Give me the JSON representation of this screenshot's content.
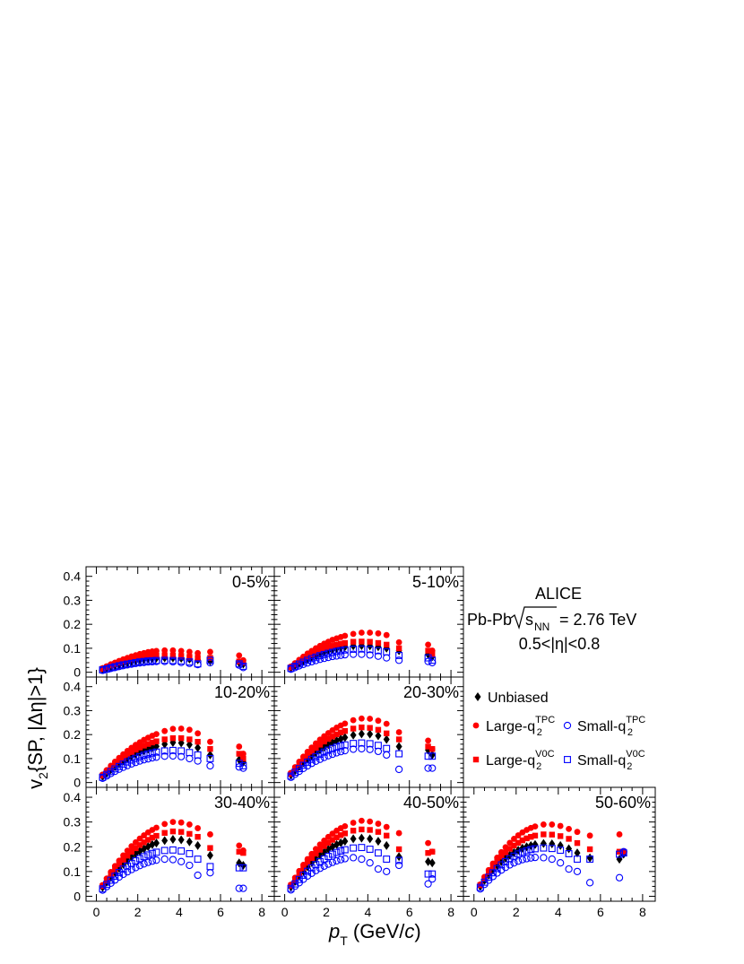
{
  "legend_box": {
    "experiment": "ALICE",
    "system_prefix": "Pb-Pb",
    "energy_symbol": "s",
    "energy_sub": "NN",
    "energy_value": "= 2.76 TeV",
    "eta_range": "0.5<|η|<0.8"
  },
  "legend": [
    {
      "label": "Unbiased",
      "sup": "",
      "marker": "diamond",
      "color": "#000000"
    },
    {
      "label": "Large-q",
      "sub": "2",
      "sup": "TPC",
      "marker": "circle",
      "color": "#ff0000"
    },
    {
      "label": "Small-q",
      "sub": "2",
      "sup": "TPC",
      "marker": "open-circle",
      "color": "#0000ff"
    },
    {
      "label": "Large-q",
      "sub": "2",
      "sup": "V0C",
      "marker": "square",
      "color": "#ff0000"
    },
    {
      "label": "Small-q",
      "sub": "2",
      "sup": "V0C",
      "marker": "open-square",
      "color": "#0000ff"
    }
  ],
  "chart_data": {
    "type": "scatter",
    "xlabel": {
      "italic": "p",
      "sub": "T",
      "rest": " (GeV/",
      "italic2": "c",
      "end": ")"
    },
    "ylabel": {
      "main": "v",
      "sub": "2",
      "rest": "{SP, |Δη|>1}"
    },
    "xlim": [
      -0.5,
      8.6
    ],
    "ylim": [
      -0.02,
      0.44
    ],
    "x_ticks": [
      "0",
      "2",
      "4",
      "6",
      "8"
    ],
    "y_ticks": [
      "0",
      "0.1",
      "0.2",
      "0.3",
      "0.4"
    ],
    "x": [
      0.3,
      0.5,
      0.7,
      0.9,
      1.1,
      1.3,
      1.5,
      1.7,
      1.9,
      2.1,
      2.3,
      2.5,
      2.7,
      2.9,
      3.3,
      3.7,
      4.1,
      4.5,
      4.9,
      5.5,
      6.9,
      7.1
    ],
    "panels": [
      {
        "label": "0-5%",
        "series": {
          "unbiased": [
            0.012,
            0.017,
            0.022,
            0.027,
            0.032,
            0.036,
            0.04,
            0.044,
            0.048,
            0.051,
            0.054,
            0.056,
            0.058,
            0.059,
            0.06,
            0.06,
            0.058,
            0.055,
            0.052,
            0.047,
            0.04,
            0.034
          ],
          "large_tpc": [
            0.017,
            0.025,
            0.033,
            0.04,
            0.047,
            0.054,
            0.06,
            0.066,
            0.071,
            0.076,
            0.08,
            0.084,
            0.087,
            0.089,
            0.091,
            0.091,
            0.089,
            0.085,
            0.08,
            0.085,
            0.07,
            0.05
          ],
          "small_tpc": [
            0.008,
            0.012,
            0.016,
            0.02,
            0.024,
            0.028,
            0.031,
            0.034,
            0.037,
            0.039,
            0.041,
            0.043,
            0.044,
            0.045,
            0.045,
            0.044,
            0.041,
            0.037,
            0.032,
            0.04,
            0.03,
            0.02
          ],
          "large_v0c": [
            0.014,
            0.021,
            0.028,
            0.034,
            0.04,
            0.045,
            0.05,
            0.054,
            0.058,
            0.062,
            0.065,
            0.067,
            0.069,
            0.07,
            0.071,
            0.07,
            0.068,
            0.064,
            0.06,
            0.06,
            0.045,
            0.04
          ],
          "small_v0c": [
            0.01,
            0.014,
            0.019,
            0.023,
            0.027,
            0.031,
            0.034,
            0.037,
            0.04,
            0.043,
            0.045,
            0.047,
            0.048,
            0.049,
            0.05,
            0.049,
            0.047,
            0.043,
            0.035,
            0.05,
            0.035,
            0.025
          ]
        }
      },
      {
        "label": "5-10%",
        "series": {
          "unbiased": [
            0.018,
            0.028,
            0.038,
            0.047,
            0.056,
            0.064,
            0.071,
            0.078,
            0.084,
            0.09,
            0.095,
            0.099,
            0.103,
            0.106,
            0.11,
            0.111,
            0.11,
            0.106,
            0.1,
            0.09,
            0.075,
            0.065
          ],
          "large_tpc": [
            0.024,
            0.038,
            0.052,
            0.065,
            0.078,
            0.089,
            0.1,
            0.11,
            0.119,
            0.127,
            0.135,
            0.141,
            0.147,
            0.152,
            0.16,
            0.165,
            0.165,
            0.162,
            0.155,
            0.125,
            0.115,
            0.09
          ],
          "small_tpc": [
            0.013,
            0.02,
            0.027,
            0.033,
            0.039,
            0.044,
            0.049,
            0.054,
            0.058,
            0.062,
            0.066,
            0.068,
            0.071,
            0.073,
            0.075,
            0.075,
            0.072,
            0.067,
            0.06,
            0.05,
            0.045,
            0.04
          ],
          "large_v0c": [
            0.02,
            0.032,
            0.044,
            0.055,
            0.065,
            0.074,
            0.083,
            0.091,
            0.098,
            0.104,
            0.11,
            0.115,
            0.119,
            0.122,
            0.127,
            0.128,
            0.127,
            0.122,
            0.115,
            0.1,
            0.09,
            0.075
          ],
          "small_v0c": [
            0.016,
            0.025,
            0.034,
            0.042,
            0.05,
            0.057,
            0.063,
            0.069,
            0.074,
            0.079,
            0.083,
            0.087,
            0.09,
            0.093,
            0.096,
            0.097,
            0.095,
            0.09,
            0.085,
            0.07,
            0.06,
            0.05
          ]
        }
      },
      {
        "label": "10-20%",
        "series": {
          "unbiased": [
            0.026,
            0.04,
            0.054,
            0.067,
            0.079,
            0.09,
            0.1,
            0.11,
            0.119,
            0.127,
            0.134,
            0.14,
            0.146,
            0.151,
            0.16,
            0.167,
            0.165,
            0.158,
            0.145,
            0.115,
            0.095,
            0.085
          ],
          "large_tpc": [
            0.033,
            0.052,
            0.07,
            0.087,
            0.103,
            0.118,
            0.132,
            0.145,
            0.157,
            0.168,
            0.178,
            0.187,
            0.195,
            0.202,
            0.215,
            0.224,
            0.225,
            0.22,
            0.205,
            0.17,
            0.15,
            0.12
          ],
          "small_tpc": [
            0.018,
            0.028,
            0.038,
            0.047,
            0.056,
            0.064,
            0.071,
            0.078,
            0.084,
            0.09,
            0.095,
            0.099,
            0.103,
            0.106,
            0.11,
            0.111,
            0.108,
            0.1,
            0.09,
            0.07,
            0.065,
            0.06
          ],
          "large_v0c": [
            0.029,
            0.046,
            0.062,
            0.077,
            0.091,
            0.104,
            0.116,
            0.127,
            0.137,
            0.146,
            0.154,
            0.161,
            0.167,
            0.172,
            0.18,
            0.185,
            0.185,
            0.18,
            0.17,
            0.14,
            0.12,
            0.1
          ],
          "small_v0c": [
            0.022,
            0.034,
            0.046,
            0.057,
            0.067,
            0.077,
            0.086,
            0.094,
            0.101,
            0.108,
            0.114,
            0.119,
            0.123,
            0.127,
            0.132,
            0.134,
            0.132,
            0.125,
            0.115,
            0.1,
            0.08,
            0.07
          ]
        }
      },
      {
        "label": "20-30%",
        "series": {
          "unbiased": [
            0.032,
            0.05,
            0.067,
            0.083,
            0.098,
            0.112,
            0.125,
            0.137,
            0.148,
            0.158,
            0.167,
            0.175,
            0.182,
            0.188,
            0.198,
            0.203,
            0.202,
            0.195,
            0.18,
            0.15,
            0.135,
            0.115
          ],
          "large_tpc": [
            0.04,
            0.064,
            0.087,
            0.108,
            0.128,
            0.146,
            0.163,
            0.179,
            0.193,
            0.206,
            0.218,
            0.229,
            0.238,
            0.246,
            0.26,
            0.267,
            0.266,
            0.258,
            0.245,
            0.21,
            0.175,
            0.14
          ],
          "small_tpc": [
            0.022,
            0.035,
            0.047,
            0.059,
            0.07,
            0.08,
            0.089,
            0.097,
            0.105,
            0.112,
            0.118,
            0.124,
            0.129,
            0.133,
            0.139,
            0.141,
            0.138,
            0.13,
            0.115,
            0.055,
            0.06,
            0.06
          ],
          "large_v0c": [
            0.036,
            0.057,
            0.077,
            0.096,
            0.113,
            0.129,
            0.144,
            0.158,
            0.171,
            0.182,
            0.192,
            0.201,
            0.209,
            0.215,
            0.225,
            0.23,
            0.228,
            0.22,
            0.205,
            0.18,
            0.15,
            0.14
          ],
          "small_v0c": [
            0.027,
            0.043,
            0.058,
            0.072,
            0.085,
            0.097,
            0.108,
            0.118,
            0.127,
            0.135,
            0.142,
            0.148,
            0.153,
            0.157,
            0.163,
            0.165,
            0.162,
            0.155,
            0.142,
            0.12,
            0.11,
            0.11
          ]
        }
      },
      {
        "label": "30-40%",
        "series": {
          "unbiased": [
            0.036,
            0.057,
            0.077,
            0.096,
            0.113,
            0.129,
            0.144,
            0.158,
            0.171,
            0.182,
            0.192,
            0.201,
            0.209,
            0.215,
            0.225,
            0.23,
            0.228,
            0.22,
            0.205,
            0.165,
            0.135,
            0.125
          ],
          "large_tpc": [
            0.045,
            0.072,
            0.098,
            0.122,
            0.144,
            0.165,
            0.184,
            0.202,
            0.218,
            0.233,
            0.246,
            0.258,
            0.268,
            0.277,
            0.292,
            0.3,
            0.298,
            0.29,
            0.275,
            0.25,
            0.205,
            0.185
          ],
          "small_tpc": [
            0.025,
            0.039,
            0.053,
            0.066,
            0.078,
            0.089,
            0.099,
            0.108,
            0.116,
            0.124,
            0.131,
            0.137,
            0.142,
            0.146,
            0.15,
            0.148,
            0.14,
            0.125,
            0.085,
            0.095,
            0.032,
            0.032
          ],
          "large_v0c": [
            0.041,
            0.065,
            0.088,
            0.109,
            0.129,
            0.147,
            0.164,
            0.18,
            0.194,
            0.207,
            0.218,
            0.228,
            0.237,
            0.244,
            0.256,
            0.262,
            0.26,
            0.252,
            0.24,
            0.195,
            0.18,
            0.175
          ],
          "small_v0c": [
            0.03,
            0.048,
            0.065,
            0.081,
            0.096,
            0.11,
            0.122,
            0.133,
            0.143,
            0.152,
            0.16,
            0.167,
            0.173,
            0.178,
            0.185,
            0.187,
            0.183,
            0.172,
            0.15,
            0.12,
            0.115,
            0.115
          ]
        }
      },
      {
        "label": "40-50%",
        "series": {
          "unbiased": [
            0.038,
            0.06,
            0.081,
            0.101,
            0.119,
            0.136,
            0.151,
            0.165,
            0.178,
            0.19,
            0.2,
            0.209,
            0.216,
            0.222,
            0.232,
            0.235,
            0.232,
            0.222,
            0.205,
            0.16,
            0.14,
            0.135
          ],
          "large_tpc": [
            0.047,
            0.075,
            0.102,
            0.127,
            0.15,
            0.171,
            0.191,
            0.209,
            0.225,
            0.24,
            0.253,
            0.265,
            0.275,
            0.283,
            0.297,
            0.305,
            0.302,
            0.293,
            0.28,
            0.255,
            0.215,
            0.18
          ],
          "small_tpc": [
            0.026,
            0.041,
            0.055,
            0.069,
            0.082,
            0.093,
            0.104,
            0.113,
            0.122,
            0.13,
            0.137,
            0.143,
            0.148,
            0.152,
            0.156,
            0.15,
            0.135,
            0.11,
            0.1,
            0.125,
            0.05,
            0.07
          ],
          "large_v0c": [
            0.043,
            0.068,
            0.092,
            0.114,
            0.135,
            0.154,
            0.172,
            0.188,
            0.203,
            0.216,
            0.228,
            0.238,
            0.247,
            0.254,
            0.265,
            0.27,
            0.268,
            0.26,
            0.245,
            0.19,
            0.175,
            0.18
          ],
          "small_v0c": [
            0.032,
            0.05,
            0.068,
            0.085,
            0.101,
            0.115,
            0.128,
            0.14,
            0.151,
            0.161,
            0.17,
            0.177,
            0.183,
            0.188,
            0.195,
            0.197,
            0.19,
            0.175,
            0.15,
            0.145,
            0.09,
            0.09
          ]
        }
      },
      {
        "label": "50-60%",
        "series": {
          "unbiased": [
            0.04,
            0.064,
            0.086,
            0.106,
            0.124,
            0.14,
            0.154,
            0.166,
            0.177,
            0.186,
            0.194,
            0.2,
            0.205,
            0.209,
            0.213,
            0.212,
            0.205,
            0.192,
            0.175,
            0.155,
            0.15,
            0.17
          ],
          "large_tpc": [
            0.048,
            0.078,
            0.106,
            0.132,
            0.156,
            0.178,
            0.198,
            0.216,
            0.232,
            0.246,
            0.258,
            0.268,
            0.276,
            0.282,
            0.29,
            0.29,
            0.284,
            0.272,
            0.26,
            0.245,
            0.25,
            0.18
          ],
          "small_tpc": [
            0.03,
            0.048,
            0.065,
            0.08,
            0.094,
            0.106,
            0.117,
            0.127,
            0.135,
            0.142,
            0.148,
            0.152,
            0.155,
            0.157,
            0.156,
            0.15,
            0.135,
            0.11,
            0.1,
            0.055,
            0.075,
            0.18
          ],
          "large_v0c": [
            0.045,
            0.072,
            0.097,
            0.12,
            0.141,
            0.16,
            0.177,
            0.192,
            0.205,
            0.216,
            0.226,
            0.234,
            0.24,
            0.245,
            0.25,
            0.249,
            0.243,
            0.232,
            0.215,
            0.19,
            0.18,
            0.18
          ],
          "small_v0c": [
            0.036,
            0.057,
            0.077,
            0.095,
            0.112,
            0.127,
            0.14,
            0.152,
            0.162,
            0.171,
            0.178,
            0.184,
            0.189,
            0.192,
            0.195,
            0.193,
            0.186,
            0.172,
            0.15,
            0.15,
            0.17,
            0.175
          ]
        }
      }
    ]
  }
}
